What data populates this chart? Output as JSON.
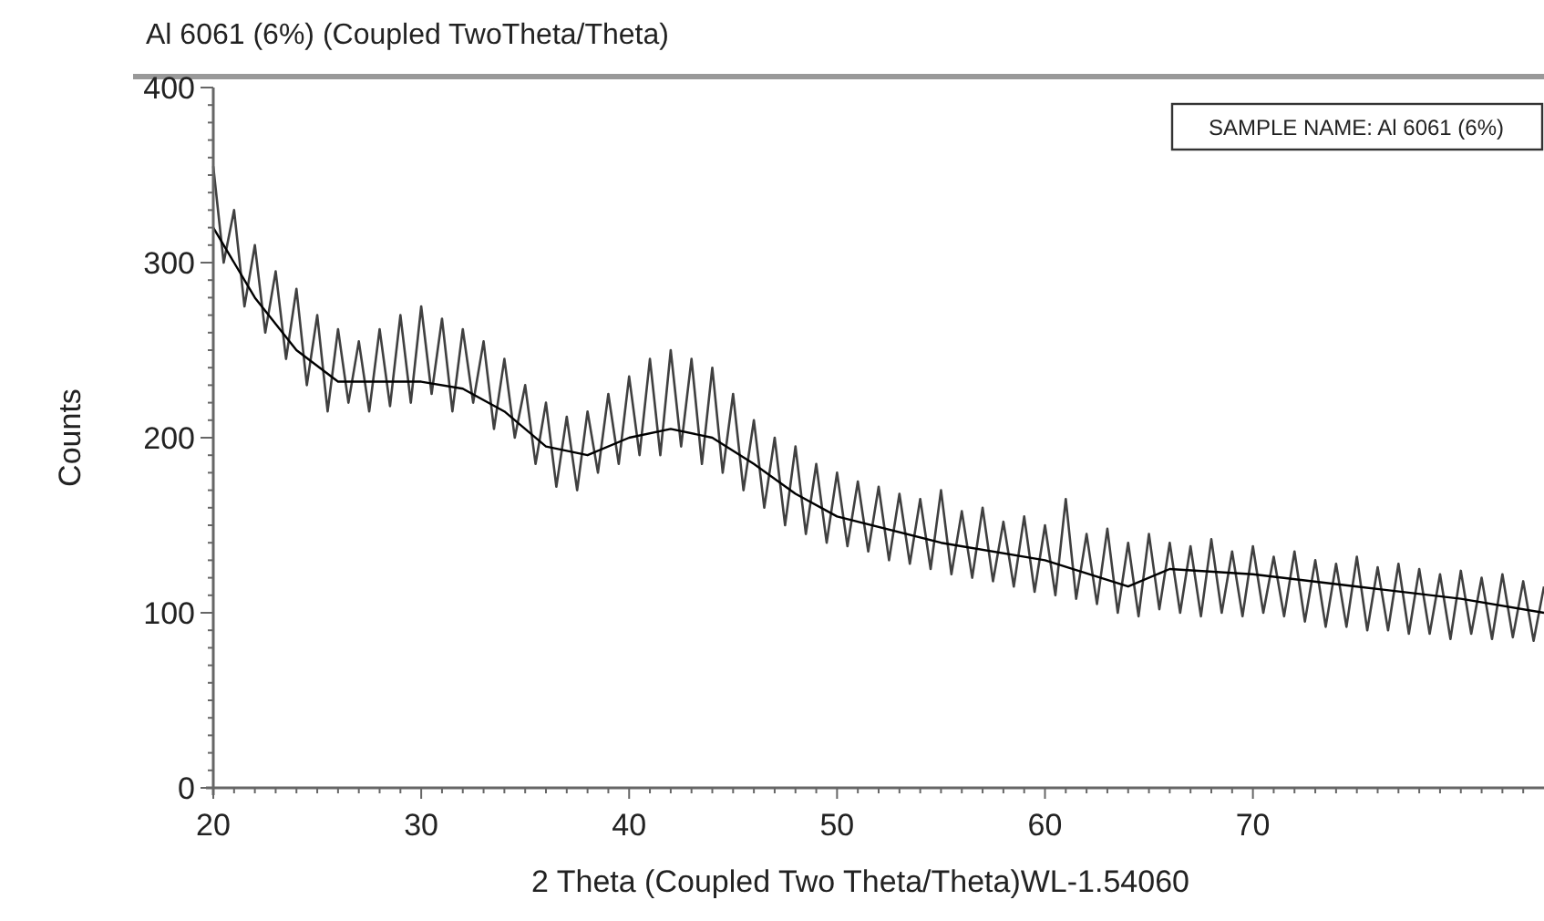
{
  "chart_data": {
    "type": "line",
    "title": "Al 6061 (6%) (Coupled TwoTheta/Theta)",
    "xlabel": "2 Theta (Coupled Two Theta/Theta)WL-1.54060",
    "ylabel": "Counts",
    "annotations": [
      "SAMPLE NAME: Al 6061 (6%)"
    ],
    "xlim": [
      20,
      84
    ],
    "ylim": [
      0,
      400
    ],
    "xticks": [
      20,
      {
        "value": 21,
        "label": null
      },
      {
        "value": 22,
        "label": null
      },
      {
        "value": 23,
        "label": null
      },
      {
        "value": 24,
        "label": null
      },
      {
        "value": 25,
        "label": null
      },
      {
        "value": 26,
        "label": null
      },
      {
        "value": 27,
        "label": null
      },
      {
        "value": 28,
        "label": null
      },
      {
        "value": 29,
        "label": null
      },
      30,
      {
        "value": 31,
        "label": null
      },
      {
        "value": 32,
        "label": null
      },
      {
        "value": 33,
        "label": null
      },
      {
        "value": 34,
        "label": null
      },
      {
        "value": 35,
        "label": null
      },
      {
        "value": 36,
        "label": null
      },
      {
        "value": 37,
        "label": null
      },
      {
        "value": 38,
        "label": null
      },
      {
        "value": 39,
        "label": null
      },
      40,
      {
        "value": 41,
        "label": null
      },
      {
        "value": 42,
        "label": null
      },
      {
        "value": 43,
        "label": null
      },
      {
        "value": 44,
        "label": null
      },
      {
        "value": 45,
        "label": null
      },
      {
        "value": 46,
        "label": null
      },
      {
        "value": 47,
        "label": null
      },
      {
        "value": 48,
        "label": null
      },
      {
        "value": 49,
        "label": null
      },
      50,
      {
        "value": 51,
        "label": null
      },
      {
        "value": 52,
        "label": null
      },
      {
        "value": 53,
        "label": null
      },
      {
        "value": 54,
        "label": null
      },
      {
        "value": 55,
        "label": null
      },
      {
        "value": 56,
        "label": null
      },
      {
        "value": 57,
        "label": null
      },
      {
        "value": 58,
        "label": null
      },
      {
        "value": 59,
        "label": null
      },
      60,
      {
        "value": 61,
        "label": null
      },
      {
        "value": 62,
        "label": null
      },
      {
        "value": 63,
        "label": null
      },
      {
        "value": 64,
        "label": null
      },
      {
        "value": 65,
        "label": null
      },
      {
        "value": 66,
        "label": null
      },
      {
        "value": 67,
        "label": null
      },
      {
        "value": 68,
        "label": null
      },
      {
        "value": 69,
        "label": null
      },
      70,
      {
        "value": 71,
        "label": null
      },
      {
        "value": 72,
        "label": null
      },
      {
        "value": 73,
        "label": null
      },
      {
        "value": 74,
        "label": null
      },
      {
        "value": 75,
        "label": null
      },
      {
        "value": 76,
        "label": null
      },
      {
        "value": 77,
        "label": null
      },
      {
        "value": 78,
        "label": null
      },
      {
        "value": 79,
        "label": null
      },
      {
        "value": 80,
        "label": null
      },
      {
        "value": 81,
        "label": null
      },
      {
        "value": 82,
        "label": null
      },
      {
        "value": 83,
        "label": null
      }
    ],
    "yticks": [
      0,
      {
        "value": 10,
        "label": null
      },
      {
        "value": 20,
        "label": null
      },
      {
        "value": 30,
        "label": null
      },
      {
        "value": 40,
        "label": null
      },
      {
        "value": 50,
        "label": null
      },
      {
        "value": 60,
        "label": null
      },
      {
        "value": 70,
        "label": null
      },
      {
        "value": 80,
        "label": null
      },
      {
        "value": 90,
        "label": null
      },
      100,
      {
        "value": 110,
        "label": null
      },
      {
        "value": 120,
        "label": null
      },
      {
        "value": 130,
        "label": null
      },
      {
        "value": 140,
        "label": null
      },
      {
        "value": 150,
        "label": null
      },
      {
        "value": 160,
        "label": null
      },
      {
        "value": 170,
        "label": null
      },
      {
        "value": 180,
        "label": null
      },
      {
        "value": 190,
        "label": null
      },
      200,
      {
        "value": 210,
        "label": null
      },
      {
        "value": 220,
        "label": null
      },
      {
        "value": 230,
        "label": null
      },
      {
        "value": 240,
        "label": null
      },
      {
        "value": 250,
        "label": null
      },
      {
        "value": 260,
        "label": null
      },
      {
        "value": 270,
        "label": null
      },
      {
        "value": 280,
        "label": null
      },
      {
        "value": 290,
        "label": null
      },
      300,
      {
        "value": 310,
        "label": null
      },
      {
        "value": 320,
        "label": null
      },
      {
        "value": 330,
        "label": null
      },
      {
        "value": 340,
        "label": null
      },
      {
        "value": 350,
        "label": null
      },
      {
        "value": 360,
        "label": null
      },
      {
        "value": 370,
        "label": null
      },
      {
        "value": 380,
        "label": null
      },
      {
        "value": 390,
        "label": null
      },
      400
    ],
    "grid": false,
    "marker": "none",
    "line_style": "solid",
    "x": [
      20,
      20.5,
      21,
      21.5,
      22,
      22.5,
      23,
      23.5,
      24,
      24.5,
      25,
      25.5,
      26,
      26.5,
      27,
      27.5,
      28,
      28.5,
      29,
      29.5,
      30,
      30.5,
      31,
      31.5,
      32,
      32.5,
      33,
      33.5,
      34,
      34.5,
      35,
      35.5,
      36,
      36.5,
      37,
      37.5,
      38,
      38.5,
      39,
      39.5,
      40,
      40.5,
      41,
      41.5,
      42,
      42.5,
      43,
      43.5,
      44,
      44.5,
      45,
      45.5,
      46,
      46.5,
      47,
      47.5,
      48,
      48.5,
      49,
      49.5,
      50,
      50.5,
      51,
      51.5,
      52,
      52.5,
      53,
      53.5,
      54,
      54.5,
      55,
      55.5,
      56,
      56.5,
      57,
      57.5,
      58,
      58.5,
      59,
      59.5,
      60,
      60.5,
      61,
      61.5,
      62,
      62.5,
      63,
      63.5,
      64,
      64.5,
      65,
      65.5,
      66,
      66.5,
      67,
      67.5,
      68,
      68.5,
      69,
      69.5,
      70,
      70.5,
      71,
      71.5,
      72,
      72.5,
      73,
      73.5,
      74,
      74.5,
      75,
      75.5,
      76,
      76.5,
      77,
      77.5,
      78,
      78.5,
      79,
      79.5,
      80,
      80.5,
      81,
      81.5,
      82,
      82.5,
      83,
      83.5,
      84
    ],
    "series": [
      {
        "color": "#404040",
        "values": [
          355,
          300,
          330,
          275,
          310,
          260,
          295,
          245,
          285,
          230,
          270,
          215,
          262,
          220,
          255,
          215,
          262,
          218,
          270,
          220,
          275,
          225,
          268,
          215,
          262,
          220,
          255,
          205,
          245,
          200,
          230,
          185,
          220,
          172,
          212,
          170,
          215,
          180,
          225,
          185,
          235,
          190,
          245,
          190,
          250,
          195,
          245,
          185,
          240,
          180,
          225,
          170,
          210,
          160,
          200,
          150,
          195,
          145,
          185,
          140,
          180,
          138,
          175,
          135,
          172,
          130,
          168,
          128,
          165,
          125,
          170,
          122,
          158,
          120,
          160,
          118,
          152,
          115,
          155,
          112,
          150,
          110,
          165,
          108,
          145,
          105,
          148,
          100,
          140,
          98,
          145,
          102,
          140,
          100,
          138,
          98,
          142,
          100,
          135,
          98,
          138,
          100,
          132,
          98,
          135,
          95,
          130,
          92,
          128,
          92,
          132,
          90,
          126,
          90,
          128,
          88,
          125,
          88,
          122,
          85,
          124,
          88,
          120,
          85,
          122,
          86,
          118,
          84,
          115
        ]
      },
      {
        "color": "#000000",
        "x": [
          20,
          22,
          24,
          26,
          28,
          30,
          32,
          34,
          36,
          38,
          40,
          42,
          44,
          46,
          48,
          50,
          55,
          60,
          64,
          66,
          70,
          75,
          80,
          84
        ],
        "values": [
          320,
          280,
          250,
          232,
          232,
          232,
          228,
          215,
          195,
          190,
          200,
          205,
          200,
          185,
          168,
          155,
          140,
          130,
          115,
          125,
          122,
          115,
          108,
          100
        ]
      }
    ]
  }
}
